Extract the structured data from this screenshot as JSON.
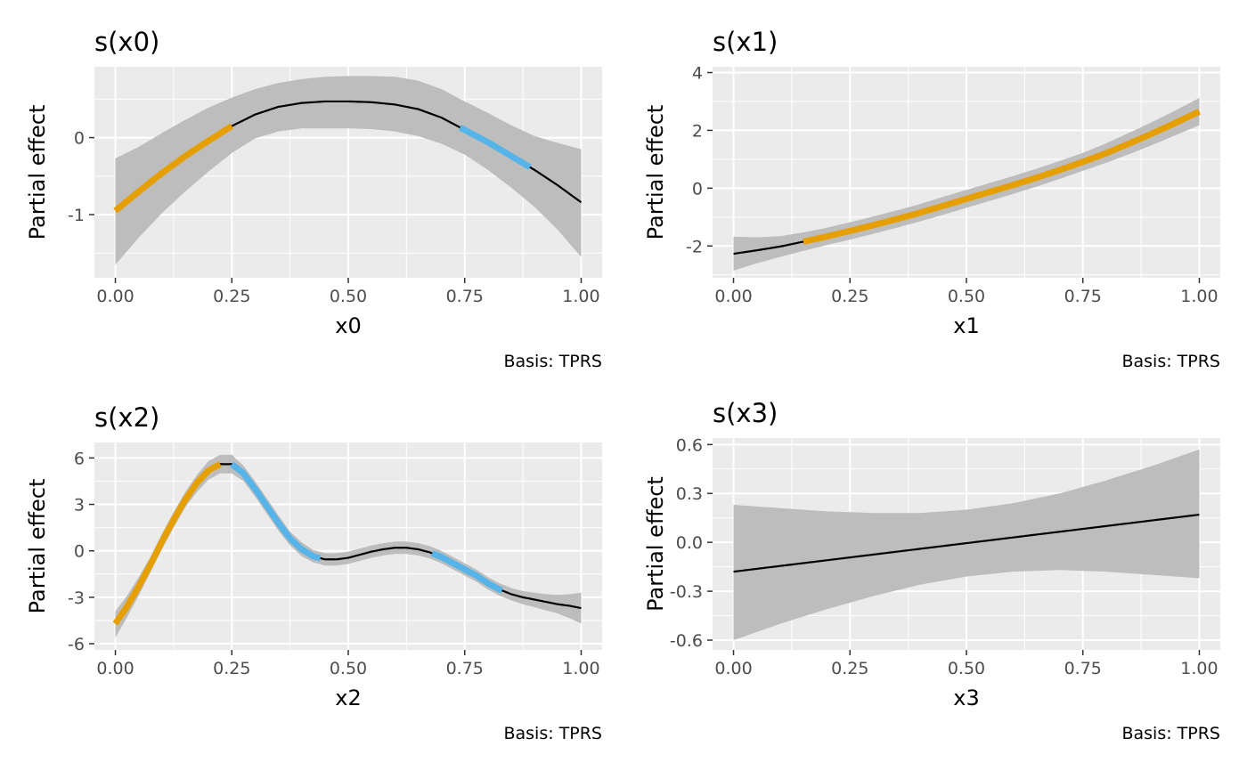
{
  "colors": {
    "panel_bg": "#ebebeb",
    "grid": "#ffffff",
    "ribbon": "#bdbdbd",
    "line": "#000000",
    "orange": "#e69f00",
    "blue": "#56b4e9",
    "tick_text": "#4d4d4d"
  },
  "chart_data": [
    {
      "type": "line",
      "title": "s(x0)",
      "xlabel": "x0",
      "ylabel": "Partial effect",
      "caption": "Basis: TPRS",
      "xlim": [
        -0.045,
        1.045
      ],
      "ylim": [
        -1.82,
        0.92
      ],
      "xticks": [
        0,
        0.25,
        0.5,
        0.75,
        1
      ],
      "xtick_labels": [
        "0.00",
        "0.25",
        "0.50",
        "0.75",
        "1.00"
      ],
      "yticks": [
        -1,
        0
      ],
      "ytick_labels": [
        "-1",
        "0"
      ],
      "x": [
        0,
        0.05,
        0.1,
        0.15,
        0.2,
        0.25,
        0.3,
        0.35,
        0.4,
        0.45,
        0.5,
        0.55,
        0.6,
        0.65,
        0.7,
        0.75,
        0.8,
        0.85,
        0.9,
        0.95,
        1
      ],
      "fit": [
        -0.95,
        -0.7,
        -0.46,
        -0.24,
        -0.04,
        0.15,
        0.3,
        0.4,
        0.45,
        0.47,
        0.47,
        0.46,
        0.43,
        0.37,
        0.26,
        0.1,
        -0.06,
        -0.24,
        -0.42,
        -0.62,
        -0.84
      ],
      "lower": [
        -1.65,
        -1.3,
        -0.98,
        -0.7,
        -0.44,
        -0.2,
        -0.01,
        0.08,
        0.12,
        0.12,
        0.12,
        0.11,
        0.08,
        0.02,
        -0.08,
        -0.22,
        -0.42,
        -0.65,
        -0.9,
        -1.2,
        -1.55
      ],
      "upper": [
        -0.27,
        -0.12,
        0.06,
        0.23,
        0.39,
        0.52,
        0.63,
        0.71,
        0.76,
        0.79,
        0.8,
        0.8,
        0.79,
        0.74,
        0.63,
        0.47,
        0.32,
        0.16,
        0.02,
        -0.07,
        -0.15
      ],
      "segments": [
        {
          "color": "orange",
          "x_from": 0.0,
          "x_to": 0.25
        },
        {
          "color": "blue",
          "x_from": 0.74,
          "x_to": 0.89
        }
      ]
    },
    {
      "type": "line",
      "title": "s(x1)",
      "xlabel": "x1",
      "ylabel": "Partial effect",
      "caption": "Basis: TPRS",
      "xlim": [
        -0.045,
        1.045
      ],
      "ylim": [
        -3.1,
        4.2
      ],
      "xticks": [
        0,
        0.25,
        0.5,
        0.75,
        1
      ],
      "xtick_labels": [
        "0.00",
        "0.25",
        "0.50",
        "0.75",
        "1.00"
      ],
      "yticks": [
        -2,
        0,
        2,
        4
      ],
      "ytick_labels": [
        "-2",
        "0",
        "2",
        "4"
      ],
      "x": [
        0,
        0.05,
        0.1,
        0.15,
        0.2,
        0.25,
        0.3,
        0.35,
        0.4,
        0.45,
        0.5,
        0.55,
        0.6,
        0.65,
        0.7,
        0.75,
        0.8,
        0.85,
        0.9,
        0.95,
        1
      ],
      "fit": [
        -2.27,
        -2.15,
        -2.02,
        -1.85,
        -1.67,
        -1.48,
        -1.28,
        -1.07,
        -0.85,
        -0.61,
        -0.37,
        -0.13,
        0.11,
        0.36,
        0.63,
        0.91,
        1.21,
        1.55,
        1.9,
        2.27,
        2.65
      ],
      "lower": [
        -2.85,
        -2.6,
        -2.38,
        -2.17,
        -1.97,
        -1.78,
        -1.58,
        -1.37,
        -1.15,
        -0.92,
        -0.68,
        -0.44,
        -0.2,
        0.05,
        0.32,
        0.6,
        0.88,
        1.18,
        1.5,
        1.84,
        2.18
      ],
      "upper": [
        -1.68,
        -1.7,
        -1.66,
        -1.53,
        -1.37,
        -1.18,
        -0.98,
        -0.77,
        -0.55,
        -0.3,
        -0.06,
        0.18,
        0.42,
        0.67,
        0.94,
        1.22,
        1.55,
        1.92,
        2.3,
        2.7,
        3.12
      ],
      "segments": [
        {
          "color": "orange",
          "x_from": 0.15,
          "x_to": 1.0
        }
      ]
    },
    {
      "type": "line",
      "title": "s(x2)",
      "xlabel": "x2",
      "ylabel": "Partial effect",
      "caption": "Basis: TPRS",
      "xlim": [
        -0.045,
        1.045
      ],
      "ylim": [
        -6.4,
        7.0
      ],
      "xticks": [
        0,
        0.25,
        0.5,
        0.75,
        1
      ],
      "xtick_labels": [
        "0.00",
        "0.25",
        "0.50",
        "0.75",
        "1.00"
      ],
      "yticks": [
        -6,
        -3,
        0,
        3,
        6
      ],
      "ytick_labels": [
        "-6",
        "-3",
        "0",
        "3",
        "6"
      ],
      "x": [
        0,
        0.025,
        0.05,
        0.075,
        0.1,
        0.125,
        0.15,
        0.175,
        0.2,
        0.225,
        0.25,
        0.275,
        0.3,
        0.325,
        0.35,
        0.375,
        0.4,
        0.425,
        0.45,
        0.475,
        0.5,
        0.525,
        0.55,
        0.575,
        0.6,
        0.625,
        0.65,
        0.675,
        0.7,
        0.725,
        0.75,
        0.775,
        0.8,
        0.825,
        0.85,
        0.875,
        0.9,
        0.925,
        0.95,
        0.975,
        1
      ],
      "fit": [
        -4.7,
        -3.6,
        -2.3,
        -0.9,
        0.6,
        2.0,
        3.3,
        4.4,
        5.2,
        5.6,
        5.6,
        5.0,
        4.0,
        2.9,
        1.8,
        0.8,
        0.1,
        -0.35,
        -0.55,
        -0.55,
        -0.45,
        -0.25,
        -0.05,
        0.1,
        0.2,
        0.2,
        0.1,
        -0.1,
        -0.4,
        -0.8,
        -1.2,
        -1.6,
        -2.1,
        -2.5,
        -2.8,
        -3.0,
        -3.15,
        -3.3,
        -3.45,
        -3.55,
        -3.7
      ],
      "lower": [
        -5.6,
        -4.3,
        -2.9,
        -1.4,
        0.1,
        1.5,
        2.8,
        3.8,
        4.6,
        5.0,
        5.0,
        4.5,
        3.5,
        2.4,
        1.3,
        0.35,
        -0.35,
        -0.75,
        -0.95,
        -0.95,
        -0.85,
        -0.65,
        -0.45,
        -0.3,
        -0.2,
        -0.2,
        -0.3,
        -0.5,
        -0.8,
        -1.2,
        -1.6,
        -2.0,
        -2.5,
        -2.9,
        -3.2,
        -3.45,
        -3.65,
        -3.85,
        -4.05,
        -4.35,
        -4.7
      ],
      "upper": [
        -3.9,
        -2.9,
        -1.7,
        -0.4,
        1.1,
        2.5,
        3.8,
        4.9,
        5.8,
        6.2,
        6.2,
        5.5,
        4.5,
        3.4,
        2.3,
        1.25,
        0.55,
        0.05,
        -0.15,
        -0.15,
        -0.05,
        0.15,
        0.35,
        0.5,
        0.6,
        0.6,
        0.5,
        0.3,
        0.0,
        -0.4,
        -0.8,
        -1.2,
        -1.7,
        -2.1,
        -2.4,
        -2.6,
        -2.7,
        -2.8,
        -2.85,
        -2.8,
        -2.7
      ],
      "segments": [
        {
          "color": "orange",
          "x_from": 0.0,
          "x_to": 0.225
        },
        {
          "color": "blue",
          "x_from": 0.25,
          "x_to": 0.44
        },
        {
          "color": "blue",
          "x_from": 0.68,
          "x_to": 0.83
        }
      ]
    },
    {
      "type": "line",
      "title": "s(x3)",
      "xlabel": "x3",
      "ylabel": "Partial effect",
      "caption": "Basis: TPRS",
      "xlim": [
        -0.045,
        1.045
      ],
      "ylim": [
        -0.66,
        0.64
      ],
      "xticks": [
        0,
        0.25,
        0.5,
        0.75,
        1
      ],
      "xtick_labels": [
        "0.00",
        "0.25",
        "0.50",
        "0.75",
        "1.00"
      ],
      "yticks": [
        -0.6,
        -0.3,
        0,
        0.3,
        0.6
      ],
      "ytick_labels": [
        "-0.6",
        "-0.3",
        "0.0",
        "0.3",
        "0.6"
      ],
      "x": [
        0,
        0.1,
        0.2,
        0.3,
        0.4,
        0.5,
        0.6,
        0.7,
        0.8,
        0.9,
        1
      ],
      "fit": [
        -0.18,
        -0.145,
        -0.11,
        -0.075,
        -0.04,
        -0.005,
        0.03,
        0.065,
        0.1,
        0.135,
        0.17
      ],
      "lower": [
        -0.6,
        -0.5,
        -0.41,
        -0.33,
        -0.26,
        -0.21,
        -0.18,
        -0.17,
        -0.18,
        -0.2,
        -0.22
      ],
      "upper": [
        0.23,
        0.21,
        0.19,
        0.18,
        0.18,
        0.2,
        0.24,
        0.3,
        0.38,
        0.47,
        0.57
      ],
      "segments": []
    }
  ]
}
